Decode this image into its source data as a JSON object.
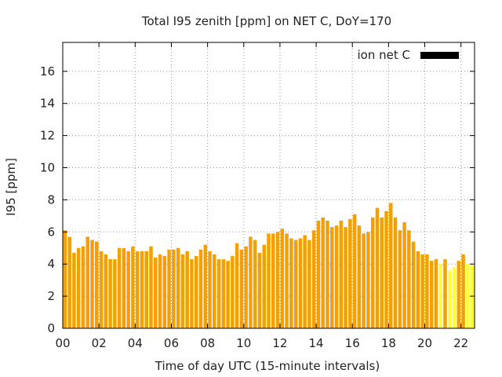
{
  "chart_data": {
    "type": "bar",
    "title": "Total I95 zenith [ppm] on NET C, DoY=170",
    "xlabel": "Time of day UTC (15-minute intervals)",
    "ylabel": "I95 [ppm]",
    "xlim": [
      0,
      22.75
    ],
    "ylim": [
      0,
      17.8
    ],
    "xticks": [
      "00",
      "02",
      "04",
      "06",
      "08",
      "10",
      "12",
      "14",
      "16",
      "18",
      "20",
      "22"
    ],
    "yticks": [
      "0",
      "2",
      "4",
      "6",
      "8",
      "10",
      "12",
      "14",
      "16"
    ],
    "grid": true,
    "legend": {
      "position": "top-right",
      "label": "ion net C",
      "color": "#000000"
    },
    "colors": {
      "orange": "#f5a000",
      "yellow": "#ffff33"
    },
    "series": [
      {
        "name": "ion net C",
        "x_start_hour": 0,
        "interval_hours": 0.25,
        "values": [
          6.1,
          5.7,
          4.7,
          5.0,
          5.1,
          5.7,
          5.5,
          5.4,
          4.8,
          4.6,
          4.3,
          4.3,
          5.0,
          5.0,
          4.8,
          5.1,
          4.8,
          4.8,
          4.8,
          5.1,
          4.4,
          4.6,
          4.5,
          4.9,
          4.9,
          5.0,
          4.6,
          4.8,
          4.3,
          4.5,
          4.9,
          5.2,
          4.8,
          4.6,
          4.3,
          4.3,
          4.2,
          4.5,
          5.3,
          4.9,
          5.1,
          5.7,
          5.5,
          4.7,
          5.2,
          5.9,
          5.9,
          6.0,
          6.2,
          5.9,
          5.6,
          5.5,
          5.6,
          5.8,
          5.5,
          6.1,
          6.7,
          6.9,
          6.7,
          6.3,
          6.4,
          6.7,
          6.3,
          6.8,
          7.1,
          6.4,
          5.9,
          6.0,
          6.9,
          7.5,
          6.9,
          7.3,
          7.8,
          6.9,
          6.1,
          6.6,
          6.1,
          5.4,
          4.8,
          4.6,
          4.6,
          4.2,
          4.3,
          4.0,
          4.3,
          3.6,
          3.8,
          4.2,
          4.6,
          4.0,
          3.9
        ],
        "colors": [
          "orange",
          "orange",
          "orange",
          "orange",
          "orange",
          "orange",
          "orange",
          "orange",
          "orange",
          "orange",
          "orange",
          "orange",
          "orange",
          "orange",
          "orange",
          "orange",
          "orange",
          "orange",
          "orange",
          "orange",
          "orange",
          "orange",
          "orange",
          "orange",
          "orange",
          "orange",
          "orange",
          "orange",
          "orange",
          "orange",
          "orange",
          "orange",
          "orange",
          "orange",
          "orange",
          "orange",
          "orange",
          "orange",
          "orange",
          "orange",
          "orange",
          "orange",
          "orange",
          "orange",
          "orange",
          "orange",
          "orange",
          "orange",
          "orange",
          "orange",
          "orange",
          "orange",
          "orange",
          "orange",
          "orange",
          "orange",
          "orange",
          "orange",
          "orange",
          "orange",
          "orange",
          "orange",
          "orange",
          "orange",
          "orange",
          "orange",
          "orange",
          "orange",
          "orange",
          "orange",
          "orange",
          "orange",
          "orange",
          "orange",
          "orange",
          "orange",
          "orange",
          "orange",
          "orange",
          "orange",
          "orange",
          "orange",
          "orange",
          "yellow",
          "orange",
          "yellow",
          "yellow",
          "orange",
          "orange",
          "yellow",
          "yellow"
        ]
      }
    ]
  }
}
